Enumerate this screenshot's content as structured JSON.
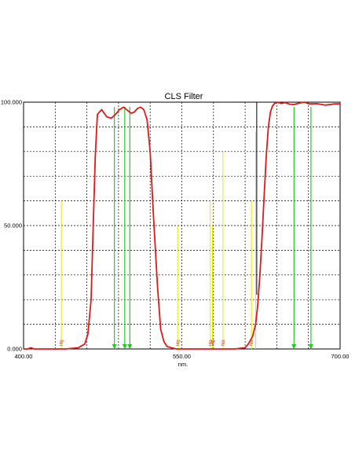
{
  "chart_data": {
    "type": "line",
    "title": "CLS Filter",
    "xlabel": "nm.",
    "ylabel": "",
    "xlim": [
      400,
      700
    ],
    "ylim": [
      0,
      100
    ],
    "x_tick_labels": [
      "400.00",
      "550.00",
      "700.00"
    ],
    "y_tick_labels": [
      "0.000",
      "50.000",
      "100.000"
    ],
    "grid": true,
    "colors": {
      "transmission": "#e01a1a",
      "emission_lines": "#e8e800",
      "markers": "#22cc22",
      "cursor": "#000000",
      "grid": "#000000"
    },
    "series": [
      {
        "x": [
          400,
          404,
          407,
          410,
          440,
          452,
          458,
          461,
          464,
          466,
          468,
          470,
          474,
          479,
          483,
          487,
          491,
          495,
          499,
          502,
          505,
          508,
          511,
          514,
          517,
          520,
          523,
          527,
          530,
          533,
          536,
          540,
          545,
          560,
          600,
          610,
          613,
          617,
          620,
          622,
          624,
          626,
          628,
          630,
          632,
          634,
          636,
          638,
          641,
          644,
          648,
          652,
          656,
          660,
          666,
          671,
          678,
          686,
          695,
          700
        ],
        "y": [
          0,
          0,
          0.5,
          0,
          0,
          0.5,
          2,
          6,
          20,
          50,
          78,
          95,
          97,
          94,
          93.5,
          95,
          97,
          98,
          96.5,
          95.5,
          96,
          97.5,
          98,
          97,
          93,
          80,
          55,
          25,
          8,
          3,
          1,
          0.5,
          0,
          0,
          0,
          0.5,
          2,
          5,
          10,
          18,
          30,
          45,
          62,
          78,
          90,
          96,
          98.5,
          99.5,
          100,
          99.5,
          99.8,
          99.2,
          99,
          99.5,
          100,
          99.3,
          99.4,
          98.8,
          99.3,
          99.3
        ]
      }
    ],
    "emission_lines": [
      {
        "x": 435.8,
        "y": 60,
        "label": "Hg"
      },
      {
        "x": 546.1,
        "y": 50,
        "label": "Hg"
      },
      {
        "x": 577,
        "y": 60,
        "label": "Hg"
      },
      {
        "x": 579,
        "y": 50,
        "label": "Hg"
      },
      {
        "x": 589,
        "y": 80,
        "label": "Na"
      },
      {
        "x": 616,
        "y": 60,
        "label": "Na"
      },
      {
        "x": 620,
        "y": 88,
        "label": ""
      }
    ],
    "marker_lines": [
      486.1,
      495.9,
      500.7,
      656.3,
      672.4
    ],
    "cursor_line": {
      "x": 621,
      "y_top": 100,
      "y_bottom": 22
    }
  }
}
